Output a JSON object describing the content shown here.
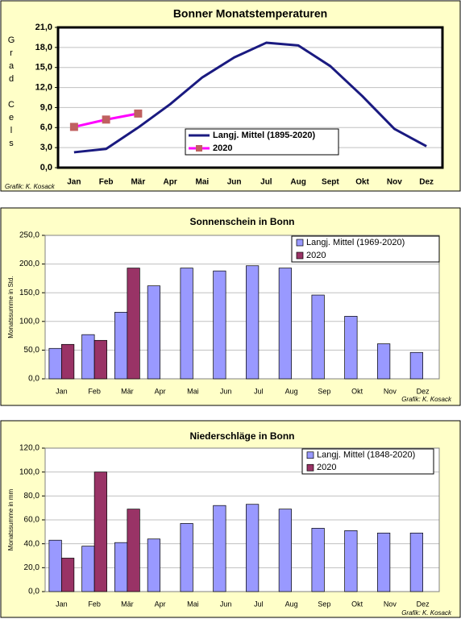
{
  "charts": [
    {
      "chart_data": {
        "type": "line",
        "title": "Bonner Monatstemperaturen",
        "y_label": "Grad Cels",
        "categories": [
          "Jan",
          "Feb",
          "Mär",
          "Apr",
          "Mai",
          "Jun",
          "Jul",
          "Aug",
          "Sept",
          "Okt",
          "Nov",
          "Dez"
        ],
        "series": [
          {
            "name": "Langj. Mittel (1895-2020)",
            "color": "#1a1a80",
            "values": [
              2.3,
              2.8,
              6.0,
              9.5,
              13.5,
              16.5,
              18.7,
              18.3,
              15.2,
              10.7,
              5.8,
              3.2
            ]
          },
          {
            "name": "2020",
            "color": "#ff00ff",
            "marker_color": "#c06060",
            "values": [
              6.1,
              7.2,
              8.1,
              null,
              null,
              null,
              null,
              null,
              null,
              null,
              null,
              null
            ]
          }
        ],
        "ylim": [
          0,
          21
        ],
        "yticks": [
          {
            "value": 0,
            "label": "0,0"
          },
          {
            "value": 3,
            "label": "3,0"
          },
          {
            "value": 6,
            "label": "6,0"
          },
          {
            "value": 9,
            "label": "9,0"
          },
          {
            "value": 12,
            "label": "12,0"
          },
          {
            "value": 15,
            "label": "15,0"
          },
          {
            "value": 18,
            "label": "18,0"
          },
          {
            "value": 21,
            "label": "21,0"
          }
        ],
        "grid": true,
        "source": "Grafik:  K. Kosack"
      }
    },
    {
      "chart_data": {
        "type": "bar",
        "title": "Sonnenschein in Bonn",
        "y_label": "Monatssumme in Std.",
        "categories": [
          "Jan",
          "Feb",
          "Mär",
          "Apr",
          "Mai",
          "Jun",
          "Jul",
          "Aug",
          "Sep",
          "Okt",
          "Nov",
          "Dez"
        ],
        "series": [
          {
            "name": "Langj. Mittel (1969-2020)",
            "color": "#9999ff",
            "values": [
              53,
              77,
              116,
              162,
              193,
              188,
              197,
              193,
              146,
              109,
              61,
              46
            ]
          },
          {
            "name": "2020",
            "color": "#993366",
            "values": [
              60,
              67,
              193,
              null,
              null,
              null,
              null,
              null,
              null,
              null,
              null,
              null
            ]
          }
        ],
        "ylim": [
          0,
          250
        ],
        "yticks": [
          {
            "value": 0,
            "label": "0,0"
          },
          {
            "value": 50,
            "label": "50,0"
          },
          {
            "value": 100,
            "label": "100,0"
          },
          {
            "value": 150,
            "label": "150,0"
          },
          {
            "value": 200,
            "label": "200,0"
          },
          {
            "value": 250,
            "label": "250,0"
          }
        ],
        "grid": true,
        "source": "Grafik: K. Kosack"
      }
    },
    {
      "chart_data": {
        "type": "bar",
        "title": "Niederschläge in Bonn",
        "y_label": "Monatssumme in mm",
        "categories": [
          "Jan",
          "Feb",
          "Mär",
          "Apr",
          "Mai",
          "Jun",
          "Jul",
          "Aug",
          "Sep",
          "Okt",
          "Nov",
          "Dez"
        ],
        "series": [
          {
            "name": "Langj. Mittel (1848-2020)",
            "color": "#9999ff",
            "values": [
              43,
              38,
              41,
              44,
              57,
              72,
              73,
              69,
              53,
              51,
              49,
              49
            ]
          },
          {
            "name": "2020",
            "color": "#993366",
            "values": [
              28,
              100,
              69,
              null,
              null,
              null,
              null,
              null,
              null,
              null,
              null,
              null
            ]
          }
        ],
        "ylim": [
          0,
          120
        ],
        "yticks": [
          {
            "value": 0,
            "label": "0,0"
          },
          {
            "value": 20,
            "label": "20,0"
          },
          {
            "value": 40,
            "label": "40,0"
          },
          {
            "value": 60,
            "label": "60,0"
          },
          {
            "value": 80,
            "label": "80,0"
          },
          {
            "value": 100,
            "label": "100,0"
          },
          {
            "value": 120,
            "label": "120,0"
          }
        ],
        "grid": true,
        "source": "Grafik: K. Kosack"
      }
    }
  ]
}
